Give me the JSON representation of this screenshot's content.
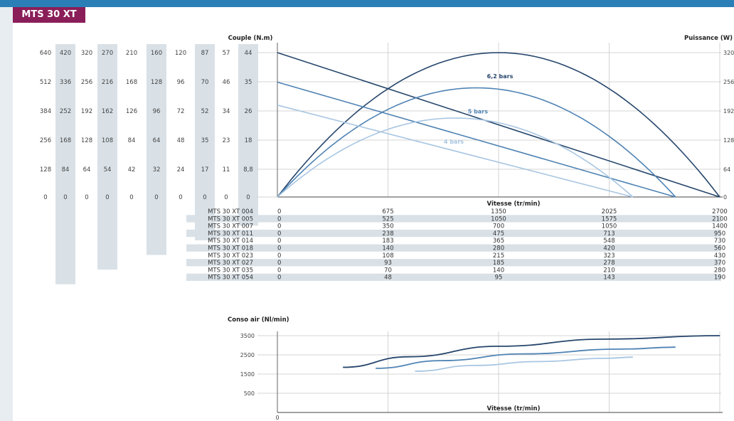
{
  "header": {
    "badge": "MTS 30 XT"
  },
  "colors": {
    "dark": "#26466c",
    "mid": "#4f83b4",
    "light": "#a8c6e2",
    "badge": "#8a1e59",
    "band": "#2a7fb6",
    "shade": "#d9e1e7"
  },
  "chart_data": [
    {
      "type": "line",
      "title": "",
      "ylabel": "Couple (N.m)",
      "y2label": "Puissance (W)",
      "xlabel": "Vitesse (tr/min)",
      "torque_scales": [
        [
          "640",
          "512",
          "384",
          "256",
          "128",
          "0"
        ],
        [
          "420",
          "336",
          "252",
          "168",
          "84",
          "0"
        ],
        [
          "320",
          "256",
          "192",
          "128",
          "64",
          "0"
        ],
        [
          "270",
          "216",
          "162",
          "108",
          "54",
          "0"
        ],
        [
          "210",
          "168",
          "126",
          "84",
          "42",
          "0"
        ],
        [
          "160",
          "128",
          "96",
          "64",
          "32",
          "0"
        ],
        [
          "120",
          "96",
          "72",
          "48",
          "24",
          "0"
        ],
        [
          "87",
          "70",
          "52",
          "35",
          "17",
          "0"
        ],
        [
          "57",
          "46",
          "34",
          "23",
          "11",
          "0"
        ],
        [
          "44",
          "35",
          "26",
          "18",
          "8,8",
          "0"
        ]
      ],
      "power_ticks": [
        "320",
        "256",
        "192",
        "128",
        "64",
        "0"
      ],
      "series": [
        {
          "name": "6,2 bars",
          "color": "dark",
          "torque": [
            [
              0,
              44
            ],
            [
              2700,
              0
            ]
          ],
          "power": {
            "x_max": 2700,
            "peak": 320
          }
        },
        {
          "name": "5 bars",
          "color": "mid",
          "torque": [
            [
              0,
              35
            ],
            [
              2430,
              0
            ]
          ],
          "power": {
            "x_max": 2430,
            "peak": 242
          }
        },
        {
          "name": "4 bars",
          "color": "light",
          "torque": [
            [
              0,
              28
            ],
            [
              2170,
              0
            ]
          ],
          "power": {
            "x_max": 2170,
            "peak": 175
          }
        }
      ],
      "speed_table": {
        "rows": [
          {
            "model": "MTS 30 XT 004",
            "values": [
              "0",
              "675",
              "1350",
              "2025",
              "2700"
            ]
          },
          {
            "model": "MTS 30 XT 005",
            "values": [
              "0",
              "525",
              "1050",
              "1575",
              "2100"
            ]
          },
          {
            "model": "MTS 30 XT 007",
            "values": [
              "0",
              "350",
              "700",
              "1050",
              "1400"
            ]
          },
          {
            "model": "MTS 30 XT 011",
            "values": [
              "0",
              "238",
              "475",
              "713",
              "950"
            ]
          },
          {
            "model": "MTS 30 XT 014",
            "values": [
              "0",
              "183",
              "365",
              "548",
              "730"
            ]
          },
          {
            "model": "MTS 30 XT 018",
            "values": [
              "0",
              "140",
              "280",
              "420",
              "560"
            ]
          },
          {
            "model": "MTS 30 XT 023",
            "values": [
              "0",
              "108",
              "215",
              "323",
              "430"
            ]
          },
          {
            "model": "MTS 30 XT 027",
            "values": [
              "0",
              "93",
              "185",
              "278",
              "370"
            ]
          },
          {
            "model": "MTS 30 XT 035",
            "values": [
              "0",
              "70",
              "140",
              "210",
              "280"
            ]
          },
          {
            "model": "MTS 30 XT 054",
            "values": [
              "0",
              "48",
              "95",
              "143",
              "190"
            ]
          }
        ]
      },
      "x_ref": [
        0,
        675,
        1350,
        2025,
        2700
      ],
      "ylim": [
        0,
        44
      ],
      "y2lim": [
        0,
        320
      ]
    },
    {
      "type": "line",
      "title": "",
      "ylabel": "Conso air (Nl/min)",
      "xlabel": "Vitesse (tr/min)",
      "x_ticks": [
        "0"
      ],
      "y_ticks": [
        "3500",
        "2500",
        "1500",
        "500"
      ],
      "ylim": [
        0,
        3500
      ],
      "series": [
        {
          "color": "dark",
          "points": [
            [
              400,
              1850
            ],
            [
              800,
              2400
            ],
            [
              1350,
              2950
            ],
            [
              2000,
              3320
            ],
            [
              2700,
              3500
            ]
          ]
        },
        {
          "color": "mid",
          "points": [
            [
              600,
              1800
            ],
            [
              1000,
              2200
            ],
            [
              1500,
              2550
            ],
            [
              2100,
              2800
            ],
            [
              2430,
              2900
            ]
          ]
        },
        {
          "color": "light",
          "points": [
            [
              840,
              1650
            ],
            [
              1200,
              1950
            ],
            [
              1600,
              2150
            ],
            [
              2000,
              2320
            ],
            [
              2170,
              2380
            ]
          ]
        }
      ]
    }
  ]
}
